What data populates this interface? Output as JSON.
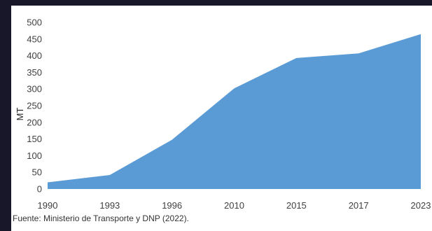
{
  "source_note": "Fuente: Ministerio de Transporte y DNP (2022).",
  "chart_data": {
    "type": "area",
    "title": "",
    "xlabel": "",
    "ylabel": "MT",
    "categories": [
      "1990",
      "1993",
      "1996",
      "2010",
      "2015",
      "2017",
      "2023"
    ],
    "values": [
      20,
      42,
      148,
      302,
      393,
      407,
      465
    ],
    "ylim": [
      0,
      500
    ],
    "yticks": [
      0,
      50,
      100,
      150,
      200,
      250,
      300,
      350,
      400,
      450,
      500
    ],
    "grid": false,
    "legend": "none",
    "fill_color": "#5b9bd5",
    "background": "#ffffff",
    "frame_background": "#181729"
  }
}
